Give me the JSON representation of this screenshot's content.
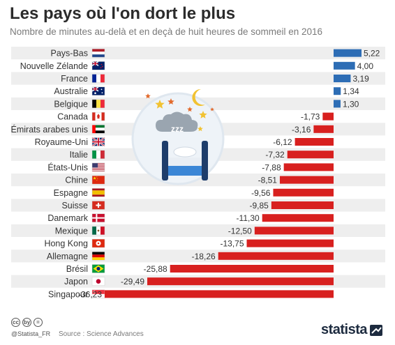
{
  "header": {
    "title": "Les pays où l'on dort le plus",
    "subtitle": "Nombre de minutes au-delà et en deçà de huit heures de sommeil en 2016"
  },
  "footer": {
    "handle": "@Statista_FR",
    "source": "Source : Science Advances",
    "brand": "statista",
    "cc_icons": [
      "cc",
      "by",
      "="
    ]
  },
  "colors": {
    "positive": "#2d6db5",
    "negative": "#d8201f",
    "stripe": "#eeeeee",
    "circle_fill": "#eef3f8",
    "circle_stroke": "#dfe7ef"
  },
  "chart_data": {
    "type": "bar",
    "orientation": "horizontal",
    "categories": [
      "Pays-Bas",
      "Nouvelle Zélande",
      "France",
      "Australie",
      "Belgique",
      "Canada",
      "Émirats arabes unis",
      "Royaume-Uni",
      "Italie",
      "États-Unis",
      "Chine",
      "Espagne",
      "Suisse",
      "Danemark",
      "Mexique",
      "Hong Kong",
      "Allemagne",
      "Brésil",
      "Japon",
      "Singapour"
    ],
    "values": [
      5.22,
      4.0,
      3.19,
      1.34,
      1.3,
      -1.73,
      -3.16,
      -6.12,
      -7.32,
      -7.88,
      -8.51,
      -9.56,
      -9.85,
      -11.3,
      -12.5,
      -13.75,
      -18.26,
      -25.88,
      -29.49,
      -36.23
    ],
    "value_labels": [
      "5,22",
      "4,00",
      "3,19",
      "1,34",
      "1,30",
      "-1,73",
      "-3,16",
      "-6,12",
      "-7,32",
      "-7,88",
      "-8,51",
      "-9,56",
      "-9,85",
      "-11,30",
      "-12,50",
      "-13,75",
      "-18,26",
      "-25,88",
      "-29,49",
      "-36,23"
    ],
    "flags": [
      "nl",
      "nz",
      "fr",
      "au",
      "be",
      "ca",
      "ae",
      "gb",
      "it",
      "us",
      "cn",
      "es",
      "ch",
      "dk",
      "mx",
      "hk",
      "de",
      "br",
      "jp",
      "sg"
    ],
    "xlim": [
      -36.23,
      5.22
    ],
    "grid": false,
    "legend": "none"
  }
}
